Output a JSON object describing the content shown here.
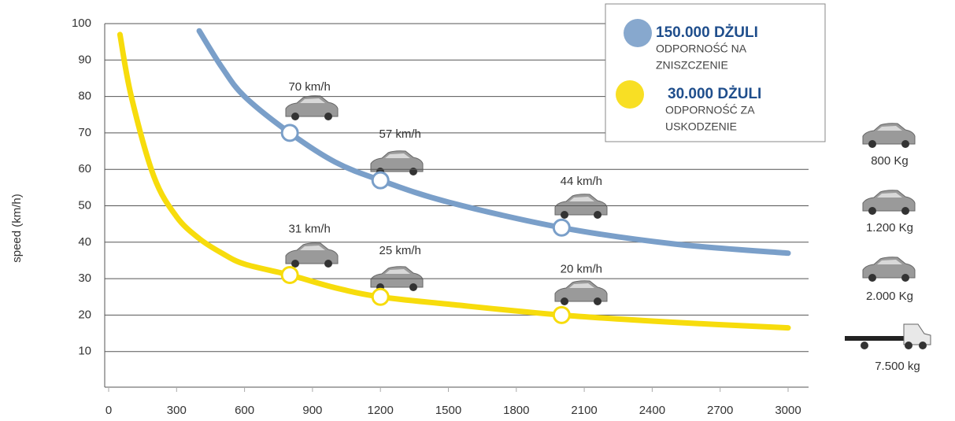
{
  "chart_data": {
    "type": "line",
    "y_label": "speed (km/h)",
    "x": [
      50,
      100,
      200,
      300,
      400,
      500,
      600,
      800,
      1000,
      1200,
      1500,
      2000,
      2500,
      3000
    ],
    "series": [
      {
        "name": "150.000 DŻULI",
        "description": [
          "ODPORNOŚĆ NA",
          "ZNISZCZENIE"
        ],
        "color": "#7a9fc9",
        "values": [
          null,
          null,
          null,
          null,
          98,
          88,
          80,
          70,
          62,
          57,
          51,
          44,
          39.5,
          37
        ],
        "value_labels": [
          null,
          null,
          null,
          null,
          null,
          null,
          null,
          "70 km/h",
          null,
          "57 km/h",
          null,
          "44 km/h",
          null,
          null
        ]
      },
      {
        "name": "30.000 DŻULI",
        "description": [
          "ODPORNOŚĆ ZA",
          "USKODZENIE"
        ],
        "color": "#f7dc0c",
        "values": [
          97,
          80,
          58,
          47,
          41,
          37,
          34,
          31,
          27.5,
          25,
          23,
          20,
          18,
          16.5
        ],
        "value_labels": [
          null,
          null,
          null,
          null,
          null,
          null,
          null,
          "31 km/h",
          null,
          "25 km/h",
          null,
          "20 km/h",
          null,
          null
        ]
      }
    ],
    "xlim": [
      0,
      3000
    ],
    "xticks": [
      0,
      300,
      600,
      900,
      1200,
      1500,
      1800,
      2100,
      2400,
      2700,
      3000
    ],
    "ylim": [
      0,
      100
    ],
    "yticks": [
      10,
      20,
      30,
      40,
      50,
      60,
      70,
      80,
      90,
      100
    ],
    "grid": true,
    "vehicles": [
      "800 Kg",
      "1.200 Kg",
      "2.000 Kg",
      "7.500 kg"
    ]
  }
}
